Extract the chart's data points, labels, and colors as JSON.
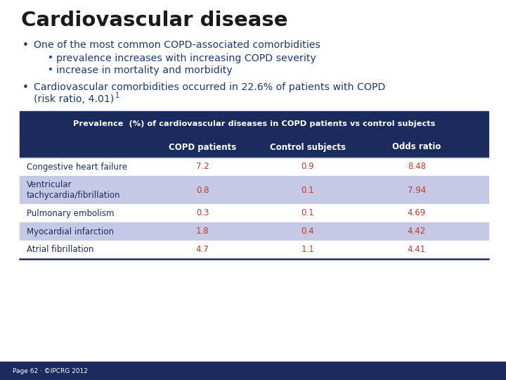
{
  "title": "Cardiovascular disease",
  "title_color": "#1a1a1a",
  "bg_color": "#ffffff",
  "footer_bg": "#1c2b5e",
  "footer_text": "Page 62 · ©IPCRG 2012",
  "bullet1_main": "One of the most common COPD-associated comorbidities",
  "bullet1_sub1": "prevalence increases with increasing COPD severity",
  "bullet1_sub2": "increase in mortality and morbidity",
  "bullet2_line1": "Cardiovascular comorbidities occurred in 22.6% of patients with COPD",
  "bullet2_line2": "(risk ratio, 4.01)",
  "bullet2_super": "1",
  "text_color": "#1c3a6e",
  "table_header_bg": "#1c2b5e",
  "table_header_text": "#ffffff",
  "table_header_title": "Prevalence  (%) of cardiovascular diseases in COPD patients vs control subjects",
  "col_headers": [
    "COPD patients",
    "Control subjects",
    "Odds ratio"
  ],
  "row_labels": [
    "Congestive heart failure",
    "Ventricular\ntachycardia/fibrillation",
    "Pulmonary embolism",
    "Myocardial infarction",
    "Atrial fibrillation"
  ],
  "copd_values": [
    "7.2",
    "0.8",
    "0.3",
    "1.8",
    "4.7"
  ],
  "control_values": [
    "0.9",
    "0.1",
    "0.1",
    "0.4",
    "1.1"
  ],
  "odds_values": [
    "8.48",
    "7.94",
    "4.69",
    "4.42",
    "4.41"
  ],
  "row_shaded_bg": "#c5c9e6",
  "row_normal_bg": "#ffffff",
  "row_text_normal": "#1c2b5e",
  "row_text_shaded": "#1c2b5e",
  "value_color": "#c0392b",
  "table_border_color": "#1c2b5e"
}
